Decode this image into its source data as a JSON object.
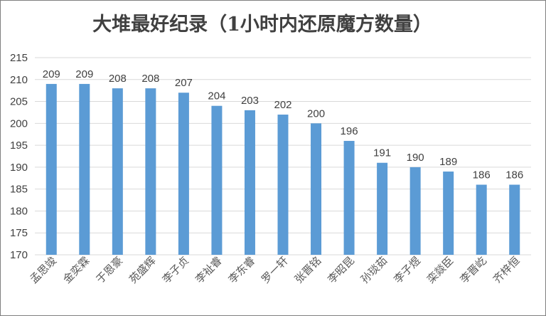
{
  "chart_data": {
    "type": "bar",
    "title": "大堆最好纪录（1小时内还原魔方数量）",
    "categories": [
      "孟思竣",
      "金奕霖",
      "于恩豪",
      "苑盛辉",
      "李子贞",
      "李祉睿",
      "李东睿",
      "罗一轩",
      "张晋铭",
      "李昭昆",
      "孙琰茹",
      "李子煜",
      "栾燚臣",
      "李晋屹",
      "齐梓恒"
    ],
    "values": [
      209,
      209,
      208,
      208,
      207,
      204,
      203,
      202,
      200,
      196,
      191,
      190,
      189,
      186,
      186
    ],
    "data_labels": [
      "209",
      "209",
      "208",
      "208",
      "207",
      "204",
      "203",
      "202",
      "200",
      "196",
      "191",
      "190",
      "189",
      "186",
      "186"
    ],
    "ylim": [
      170,
      215
    ],
    "yticks": [
      "170",
      "175",
      "180",
      "185",
      "190",
      "195",
      "200",
      "205",
      "210",
      "215"
    ],
    "xlabel": "",
    "ylabel": "",
    "grid": true,
    "legend": "none",
    "colors": {
      "bar": "#5b9bd5",
      "grid": "#d9d9d9",
      "text": "#404040"
    }
  }
}
